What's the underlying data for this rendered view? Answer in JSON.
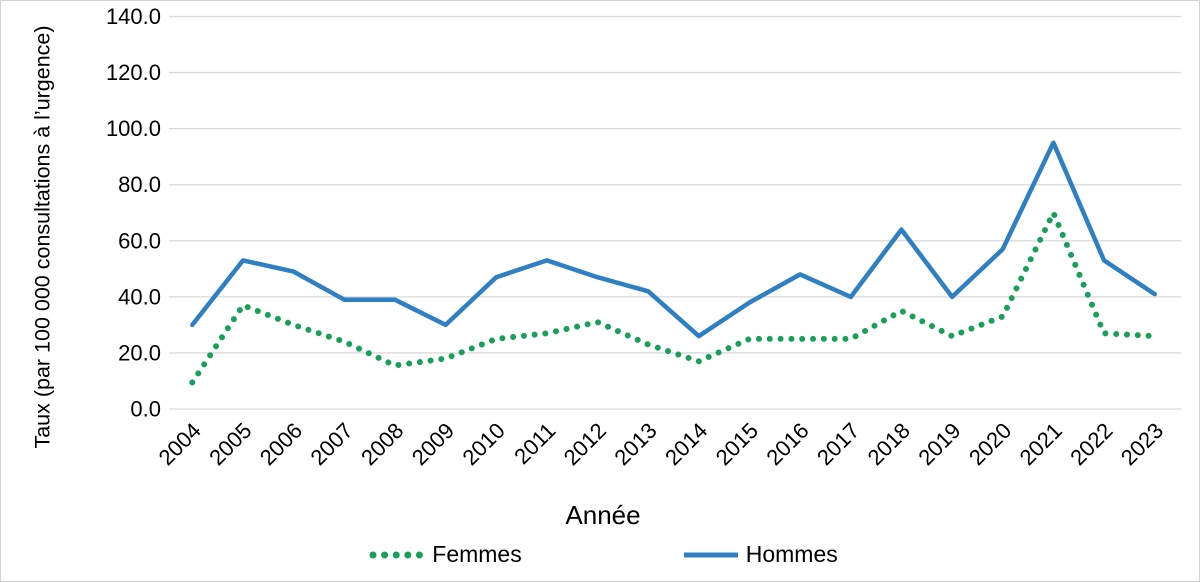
{
  "chart_data": {
    "type": "line",
    "title": "",
    "xlabel": "Année",
    "ylabel": "Taux (par 100 000 consultations à l’urgence)",
    "x": [
      "2004",
      "2005",
      "2006",
      "2007",
      "2008",
      "2009",
      "2010",
      "2011",
      "2012",
      "2013",
      "2014",
      "2015",
      "2016",
      "2017",
      "2018",
      "2019",
      "2020",
      "2021",
      "2022",
      "2023"
    ],
    "series": [
      {
        "name": "Femmes",
        "style": "dotted",
        "color": "#18a05a",
        "values": [
          9.5,
          37,
          30,
          24,
          15.5,
          18,
          25,
          27,
          31,
          23,
          17,
          25,
          25,
          25,
          35,
          26,
          33,
          70,
          27,
          26
        ]
      },
      {
        "name": "Hommes",
        "style": "solid",
        "color": "#2e80c3",
        "values": [
          30,
          53,
          49,
          39,
          39,
          30,
          47,
          53,
          47,
          42,
          26,
          38,
          48,
          40,
          64,
          40,
          57,
          95,
          53,
          41
        ]
      }
    ],
    "ylim": [
      0,
      140
    ],
    "ytick_step": 20,
    "ytick_labels": [
      "0.0",
      "20.0",
      "40.0",
      "60.0",
      "80.0",
      "100.0",
      "120.0",
      "140.0"
    ],
    "grid": true,
    "gridline_color": "#d9d9d9",
    "axis_text_color": "#000000",
    "legend_position": "bottom"
  }
}
